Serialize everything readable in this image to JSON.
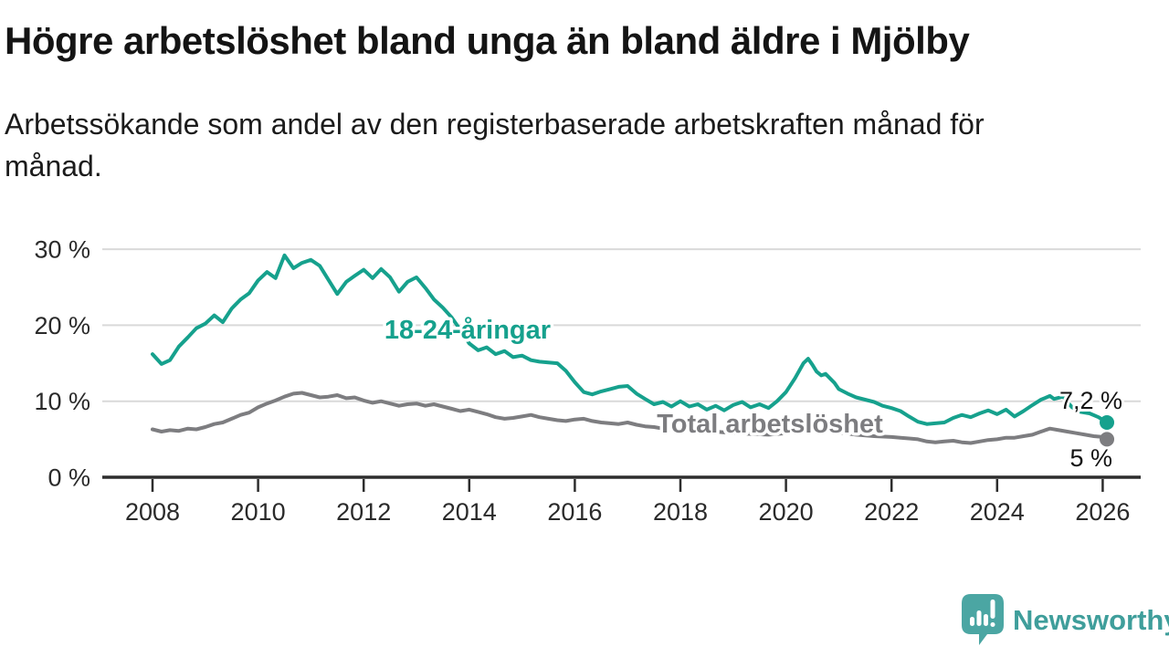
{
  "header": {
    "title": "Högre arbetslöshet bland unga än bland äldre i Mjölby",
    "subtitle": "Arbetssökande som andel av den registerbaserade arbetskraften månad för månad."
  },
  "branding": {
    "logo_text": "Newsworthy",
    "logo_bubble_color": "#4ba6a3",
    "logo_text_color": "#3f9e9b"
  },
  "chart_data": {
    "type": "line",
    "title": "Högre arbetslöshet bland unga än bland äldre i Mjölby",
    "xlabel": "",
    "ylabel": "",
    "xlim": [
      2007.05,
      2027.1
    ],
    "ylim": [
      0,
      31
    ],
    "grid": "horizontal-only",
    "legend_position": "inline-labels",
    "x_ticks": [
      2008,
      2010,
      2012,
      2014,
      2016,
      2018,
      2020,
      2022,
      2024,
      2026
    ],
    "y_ticks": [
      {
        "value": 0,
        "label": "0 %"
      },
      {
        "value": 10,
        "label": "10 %"
      },
      {
        "value": 20,
        "label": "20 %"
      },
      {
        "value": 30,
        "label": "30 %"
      }
    ],
    "colors": {
      "youth_line": "#16a18d",
      "total_line": "#7d7d80",
      "gridline": "#d9d9d9",
      "axis": "#2d2d2d",
      "text": "#2a2a2a"
    },
    "series": [
      {
        "name": "Total arbetslöshet",
        "color": "#7d7d80",
        "end_label": "5 %",
        "end_value": 5.0,
        "points": [
          [
            2008,
            6.3
          ],
          [
            2008.17,
            6
          ],
          [
            2008.33,
            6.2
          ],
          [
            2008.5,
            6.1
          ],
          [
            2008.67,
            6.4
          ],
          [
            2008.83,
            6.3
          ],
          [
            2009,
            6.6
          ],
          [
            2009.17,
            7
          ],
          [
            2009.33,
            7.2
          ],
          [
            2009.5,
            7.7
          ],
          [
            2009.67,
            8.2
          ],
          [
            2009.83,
            8.5
          ],
          [
            2010,
            9.2
          ],
          [
            2010.17,
            9.7
          ],
          [
            2010.33,
            10.1
          ],
          [
            2010.5,
            10.6
          ],
          [
            2010.67,
            11
          ],
          [
            2010.83,
            11.1
          ],
          [
            2011,
            10.8
          ],
          [
            2011.17,
            10.5
          ],
          [
            2011.33,
            10.6
          ],
          [
            2011.5,
            10.8
          ],
          [
            2011.67,
            10.4
          ],
          [
            2011.83,
            10.5
          ],
          [
            2012,
            10.1
          ],
          [
            2012.17,
            9.8
          ],
          [
            2012.33,
            10
          ],
          [
            2012.5,
            9.7
          ],
          [
            2012.67,
            9.4
          ],
          [
            2012.83,
            9.6
          ],
          [
            2013,
            9.7
          ],
          [
            2013.17,
            9.4
          ],
          [
            2013.33,
            9.6
          ],
          [
            2013.5,
            9.3
          ],
          [
            2013.67,
            9
          ],
          [
            2013.83,
            8.7
          ],
          [
            2014,
            8.9
          ],
          [
            2014.17,
            8.6
          ],
          [
            2014.33,
            8.3
          ],
          [
            2014.5,
            7.9
          ],
          [
            2014.67,
            7.7
          ],
          [
            2014.83,
            7.8
          ],
          [
            2015,
            8
          ],
          [
            2015.17,
            8.2
          ],
          [
            2015.33,
            7.9
          ],
          [
            2015.5,
            7.7
          ],
          [
            2015.67,
            7.5
          ],
          [
            2015.83,
            7.4
          ],
          [
            2016,
            7.6
          ],
          [
            2016.17,
            7.7
          ],
          [
            2016.33,
            7.4
          ],
          [
            2016.5,
            7.2
          ],
          [
            2016.67,
            7.1
          ],
          [
            2016.83,
            7
          ],
          [
            2017,
            7.2
          ],
          [
            2017.17,
            6.9
          ],
          [
            2017.33,
            6.7
          ],
          [
            2017.5,
            6.6
          ],
          [
            2017.67,
            6.4
          ],
          [
            2017.83,
            6.3
          ],
          [
            2018,
            6.4
          ],
          [
            2018.33,
            6.2
          ],
          [
            2018.67,
            6
          ],
          [
            2019,
            5.8
          ],
          [
            2019.33,
            5.7
          ],
          [
            2019.67,
            5.6
          ],
          [
            2020,
            5.8
          ],
          [
            2020.25,
            6.4
          ],
          [
            2020.5,
            6.3
          ],
          [
            2020.75,
            6.1
          ],
          [
            2021,
            5.9
          ],
          [
            2021.33,
            5.6
          ],
          [
            2021.67,
            5.4
          ],
          [
            2022,
            5.3
          ],
          [
            2022.17,
            5.2
          ],
          [
            2022.33,
            5.1
          ],
          [
            2022.5,
            5
          ],
          [
            2022.67,
            4.7
          ],
          [
            2022.83,
            4.6
          ],
          [
            2023,
            4.7
          ],
          [
            2023.17,
            4.8
          ],
          [
            2023.33,
            4.6
          ],
          [
            2023.5,
            4.5
          ],
          [
            2023.67,
            4.7
          ],
          [
            2023.83,
            4.9
          ],
          [
            2024,
            5
          ],
          [
            2024.17,
            5.2
          ],
          [
            2024.33,
            5.2
          ],
          [
            2024.5,
            5.4
          ],
          [
            2024.67,
            5.6
          ],
          [
            2024.83,
            6
          ],
          [
            2025,
            6.4
          ],
          [
            2025.17,
            6.2
          ],
          [
            2025.33,
            6
          ],
          [
            2025.5,
            5.8
          ],
          [
            2025.67,
            5.6
          ],
          [
            2025.83,
            5.4
          ],
          [
            2026,
            5.3
          ],
          [
            2026.08,
            5
          ]
        ]
      },
      {
        "name": "18-24-åringar",
        "color": "#16a18d",
        "end_label": "7,2 %",
        "end_value": 7.2,
        "points": [
          [
            2008,
            16.2
          ],
          [
            2008.17,
            14.9
          ],
          [
            2008.33,
            15.4
          ],
          [
            2008.5,
            17.2
          ],
          [
            2008.67,
            18.4
          ],
          [
            2008.83,
            19.6
          ],
          [
            2009,
            20.2
          ],
          [
            2009.17,
            21.3
          ],
          [
            2009.33,
            20.4
          ],
          [
            2009.5,
            22.2
          ],
          [
            2009.67,
            23.4
          ],
          [
            2009.83,
            24.2
          ],
          [
            2010,
            25.9
          ],
          [
            2010.17,
            27
          ],
          [
            2010.33,
            26.2
          ],
          [
            2010.5,
            29.2
          ],
          [
            2010.67,
            27.5
          ],
          [
            2010.83,
            28.2
          ],
          [
            2011,
            28.6
          ],
          [
            2011.17,
            27.8
          ],
          [
            2011.33,
            26
          ],
          [
            2011.5,
            24.1
          ],
          [
            2011.67,
            25.7
          ],
          [
            2011.83,
            26.5
          ],
          [
            2012,
            27.3
          ],
          [
            2012.17,
            26.2
          ],
          [
            2012.33,
            27.4
          ],
          [
            2012.5,
            26.3
          ],
          [
            2012.67,
            24.4
          ],
          [
            2012.83,
            25.7
          ],
          [
            2013,
            26.3
          ],
          [
            2013.17,
            24.9
          ],
          [
            2013.33,
            23.4
          ],
          [
            2013.5,
            22.3
          ],
          [
            2013.67,
            21
          ],
          [
            2013.83,
            19.4
          ],
          [
            2014,
            17.6
          ],
          [
            2014.17,
            16.7
          ],
          [
            2014.33,
            17.1
          ],
          [
            2014.5,
            16.2
          ],
          [
            2014.67,
            16.6
          ],
          [
            2014.83,
            15.8
          ],
          [
            2015,
            16
          ],
          [
            2015.17,
            15.4
          ],
          [
            2015.33,
            15.2
          ],
          [
            2015.5,
            15.1
          ],
          [
            2015.67,
            15
          ],
          [
            2015.83,
            14
          ],
          [
            2016,
            12.5
          ],
          [
            2016.17,
            11.2
          ],
          [
            2016.33,
            10.9
          ],
          [
            2016.5,
            11.3
          ],
          [
            2016.67,
            11.6
          ],
          [
            2016.83,
            11.9
          ],
          [
            2017,
            12
          ],
          [
            2017.17,
            11
          ],
          [
            2017.33,
            10.3
          ],
          [
            2017.5,
            9.6
          ],
          [
            2017.67,
            9.9
          ],
          [
            2017.83,
            9.3
          ],
          [
            2018,
            10
          ],
          [
            2018.17,
            9.3
          ],
          [
            2018.33,
            9.6
          ],
          [
            2018.5,
            8.9
          ],
          [
            2018.67,
            9.4
          ],
          [
            2018.83,
            8.8
          ],
          [
            2019,
            9.5
          ],
          [
            2019.17,
            9.9
          ],
          [
            2019.33,
            9.2
          ],
          [
            2019.5,
            9.6
          ],
          [
            2019.67,
            9.1
          ],
          [
            2019.83,
            10
          ],
          [
            2020,
            11.2
          ],
          [
            2020.17,
            13
          ],
          [
            2020.33,
            15
          ],
          [
            2020.42,
            15.6
          ],
          [
            2020.5,
            14.8
          ],
          [
            2020.58,
            13.9
          ],
          [
            2020.67,
            13.4
          ],
          [
            2020.75,
            13.6
          ],
          [
            2020.92,
            12.4
          ],
          [
            2021,
            11.6
          ],
          [
            2021.17,
            11
          ],
          [
            2021.33,
            10.5
          ],
          [
            2021.5,
            10.2
          ],
          [
            2021.67,
            9.9
          ],
          [
            2021.83,
            9.4
          ],
          [
            2022,
            9.1
          ],
          [
            2022.17,
            8.7
          ],
          [
            2022.33,
            8
          ],
          [
            2022.5,
            7.3
          ],
          [
            2022.67,
            7
          ],
          [
            2022.83,
            7.1
          ],
          [
            2023,
            7.2
          ],
          [
            2023.17,
            7.8
          ],
          [
            2023.33,
            8.2
          ],
          [
            2023.5,
            7.9
          ],
          [
            2023.67,
            8.4
          ],
          [
            2023.83,
            8.8
          ],
          [
            2024,
            8.3
          ],
          [
            2024.17,
            8.9
          ],
          [
            2024.33,
            8
          ],
          [
            2024.5,
            8.7
          ],
          [
            2024.67,
            9.5
          ],
          [
            2024.83,
            10.2
          ],
          [
            2025,
            10.7
          ],
          [
            2025.08,
            10.3
          ],
          [
            2025.25,
            10.6
          ],
          [
            2025.42,
            9.2
          ],
          [
            2025.58,
            8.6
          ],
          [
            2025.75,
            8.4
          ],
          [
            2025.92,
            7.9
          ],
          [
            2026.08,
            7.2
          ]
        ]
      }
    ]
  }
}
